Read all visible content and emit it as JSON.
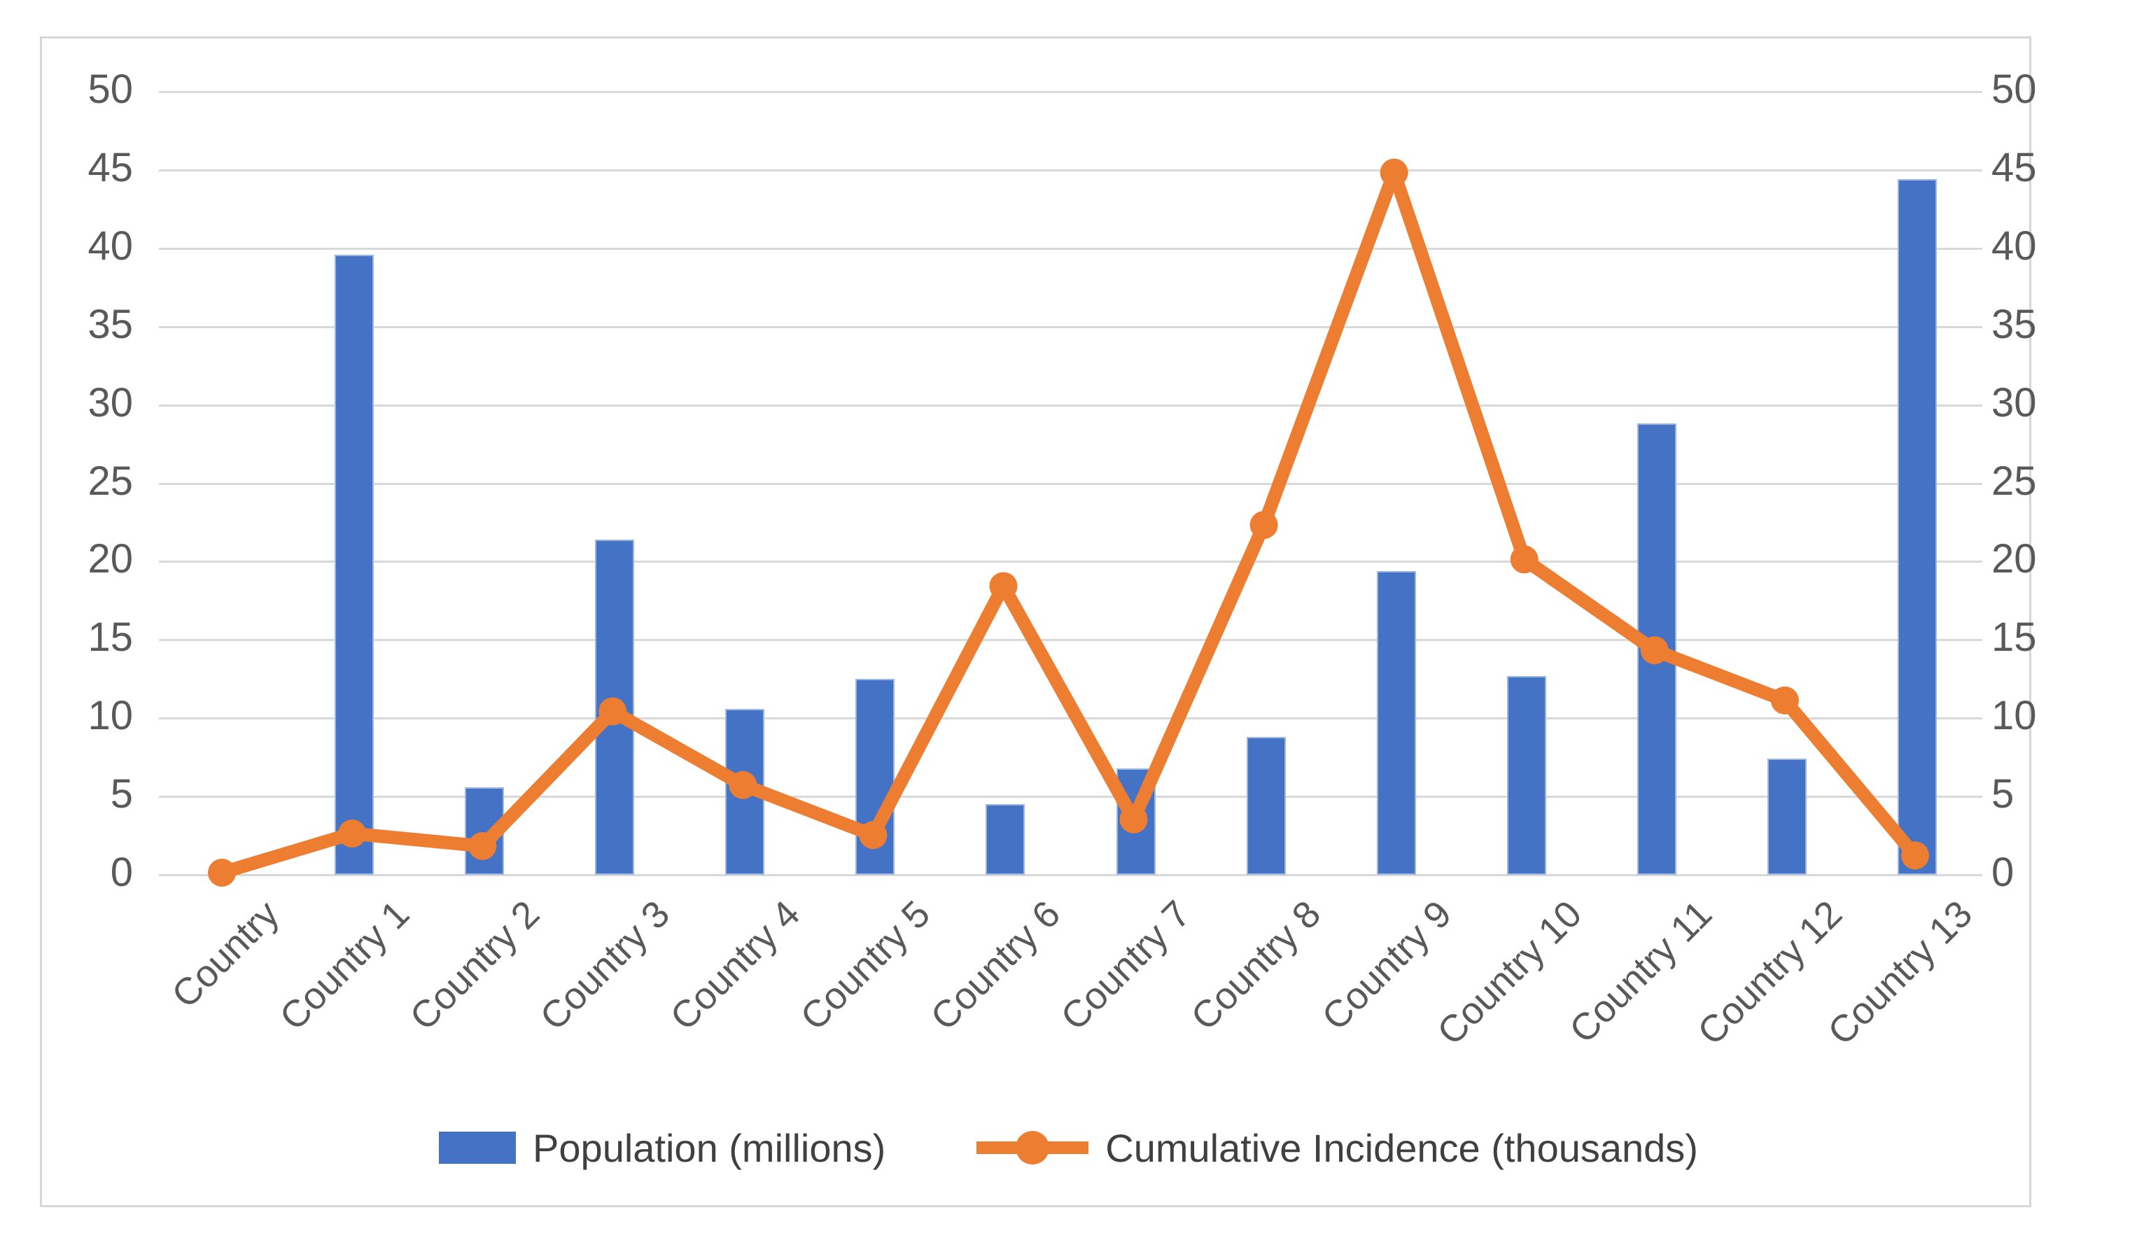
{
  "chart_data": {
    "type": "combo",
    "categories": [
      "Country",
      "Country 1",
      "Country 2",
      "Country 3",
      "Country 4",
      "Country 5",
      "Country 6",
      "Country 7",
      "Country 8",
      "Country 9",
      "Country 10",
      "Country 11",
      "Country 12",
      "Country 13"
    ],
    "series": [
      {
        "name": "Population (millions)",
        "type": "bar",
        "color": "#4472C4",
        "values": [
          0,
          39.6,
          5.6,
          21.4,
          10.6,
          12.5,
          4.5,
          6.8,
          8.8,
          19.4,
          12.7,
          28.8,
          7.4,
          44.4
        ]
      },
      {
        "name": "Cumulative Incidence (thousands)",
        "type": "line",
        "color": "#ED7D31",
        "values": [
          0,
          2.5,
          1.7,
          10.3,
          5.6,
          2.4,
          18.3,
          3.4,
          22.2,
          44.7,
          20.0,
          14.2,
          11.0,
          1.1
        ]
      }
    ],
    "title": "",
    "xlabel": "",
    "ylabel_left": "",
    "ylabel_right": "",
    "ylim": [
      0,
      50
    ],
    "yticks": [
      0,
      5,
      10,
      15,
      20,
      25,
      30,
      35,
      40,
      45,
      50
    ],
    "grid": true,
    "dual_axis": true,
    "legend_position": "bottom"
  },
  "colors": {
    "bar_fill": "#4472C4",
    "line_stroke": "#ED7D31",
    "gridline": "#d9d9d9",
    "axis_text": "#595959",
    "frame_border": "#d6d6d6",
    "background": "#ffffff"
  }
}
